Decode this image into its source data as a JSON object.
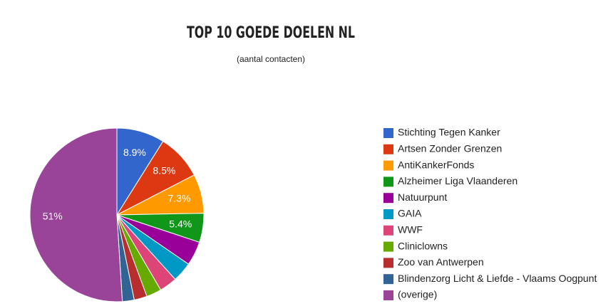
{
  "chart_data": {
    "type": "pie",
    "title": "TOP 10 GOEDE DOELEN NL",
    "subtitle": "(aantal contacten)",
    "categories": [
      "Stichting Tegen Kanker",
      "Artsen Zonder Grenzen",
      "AntiKankerFonds",
      "Alzheimer Liga Vlaanderen",
      "Natuurpunt",
      "GAIA",
      "WWF",
      "Cliniclowns",
      "Zoo van Antwerpen",
      "Blindenzorg Licht & Liefde - Vlaams Oogpunt",
      "(overige)"
    ],
    "values": [
      8.9,
      8.5,
      7.3,
      5.4,
      4.5,
      3.7,
      3.3,
      2.8,
      2.4,
      2.2,
      51
    ],
    "value_labels": [
      "8.9%",
      "8.5%",
      "7.3%",
      "5.4%",
      null,
      null,
      null,
      null,
      null,
      null,
      "51%"
    ],
    "colors": [
      "#3366cc",
      "#dc3912",
      "#ff9900",
      "#109618",
      "#990099",
      "#0099c6",
      "#dd4477",
      "#66aa00",
      "#b82e2e",
      "#316395",
      "#994499"
    ],
    "legend": "right"
  }
}
